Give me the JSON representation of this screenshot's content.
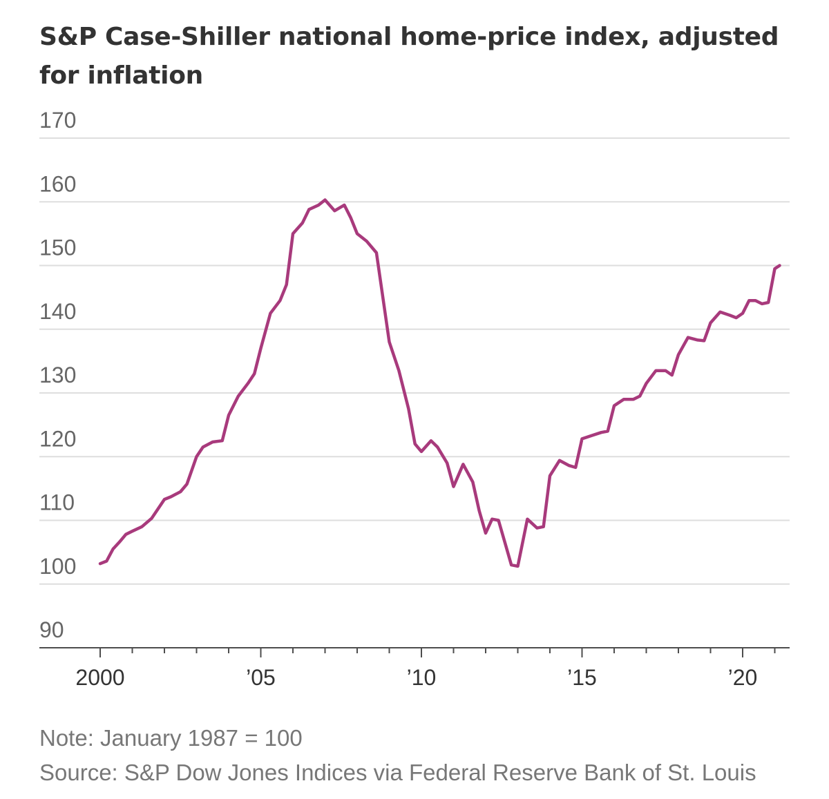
{
  "chart_data": {
    "type": "line",
    "title": "S&P Case-Shiller national home-price index, adjusted for inflation",
    "note": "Note: January 1987 = 100",
    "source": "Source: S&P Dow Jones Indices via Federal Reserve Bank of St. Louis",
    "xlabel": "",
    "ylabel": "",
    "ylim": [
      90,
      170
    ],
    "yticks": [
      {
        "value": 170,
        "label": "170"
      },
      {
        "value": 160,
        "label": "160"
      },
      {
        "value": 150,
        "label": "150"
      },
      {
        "value": 140,
        "label": "140"
      },
      {
        "value": 130,
        "label": "130"
      },
      {
        "value": 120,
        "label": "120"
      },
      {
        "value": 110,
        "label": "110"
      },
      {
        "value": 100,
        "label": "100"
      },
      {
        "value": 90,
        "label": "90"
      }
    ],
    "xlim": [
      2000,
      2021.2
    ],
    "xticks": [
      {
        "value": 2000,
        "label": "2000"
      },
      {
        "value": 2005,
        "label": "’05"
      },
      {
        "value": 2010,
        "label": "’10"
      },
      {
        "value": 2015,
        "label": "’15"
      },
      {
        "value": 2020,
        "label": "’20"
      }
    ],
    "minor_xticks": [
      2001,
      2002,
      2003,
      2004,
      2006,
      2007,
      2008,
      2009,
      2011,
      2012,
      2013,
      2014,
      2016,
      2017,
      2018,
      2019,
      2021
    ],
    "grid": true,
    "line_color": "#a83a7c",
    "series": [
      {
        "name": "",
        "x": [
          2000.0,
          2000.2,
          2000.4,
          2000.6,
          2000.8,
          2001.0,
          2001.3,
          2001.6,
          2002.0,
          2002.2,
          2002.5,
          2002.7,
          2003.0,
          2003.2,
          2003.5,
          2003.8,
          2004.0,
          2004.3,
          2004.6,
          2004.8,
          2005.0,
          2005.3,
          2005.6,
          2005.8,
          2006.0,
          2006.3,
          2006.5,
          2006.8,
          2007.0,
          2007.3,
          2007.6,
          2007.8,
          2008.0,
          2008.3,
          2008.6,
          2008.8,
          2009.0,
          2009.3,
          2009.6,
          2009.8,
          2010.0,
          2010.3,
          2010.5,
          2010.8,
          2011.0,
          2011.3,
          2011.6,
          2011.8,
          2012.0,
          2012.2,
          2012.4,
          2012.6,
          2012.8,
          2013.0,
          2013.3,
          2013.6,
          2013.8,
          2014.0,
          2014.3,
          2014.6,
          2014.8,
          2015.0,
          2015.3,
          2015.6,
          2015.8,
          2016.0,
          2016.3,
          2016.6,
          2016.8,
          2017.0,
          2017.3,
          2017.6,
          2017.8,
          2018.0,
          2018.3,
          2018.6,
          2018.8,
          2019.0,
          2019.3,
          2019.6,
          2019.8,
          2020.0,
          2020.2,
          2020.4,
          2020.6,
          2020.8,
          2021.0,
          2021.15
        ],
        "values": [
          103.2,
          103.6,
          105.5,
          106.6,
          107.8,
          108.3,
          109.0,
          110.3,
          113.3,
          113.7,
          114.5,
          115.7,
          120.0,
          121.5,
          122.3,
          122.5,
          126.5,
          129.5,
          131.5,
          133.0,
          137.0,
          142.5,
          144.5,
          147.0,
          155.0,
          156.7,
          158.8,
          159.5,
          160.3,
          158.6,
          159.5,
          157.5,
          155.0,
          153.8,
          152.0,
          145.0,
          138.0,
          133.5,
          127.5,
          122.0,
          120.8,
          122.5,
          121.5,
          119.0,
          115.3,
          118.8,
          116.0,
          111.5,
          108.0,
          110.2,
          110.0,
          106.5,
          103.0,
          102.8,
          110.2,
          108.8,
          109.0,
          117.0,
          119.4,
          118.6,
          118.3,
          122.8,
          123.3,
          123.8,
          124.0,
          128.0,
          129.0,
          129.0,
          129.5,
          131.5,
          133.5,
          133.5,
          132.8,
          136.0,
          138.7,
          138.3,
          138.2,
          141.0,
          142.7,
          142.2,
          141.8,
          142.5,
          144.5,
          144.5,
          144.0,
          144.2,
          149.5,
          150.0
        ]
      }
    ]
  }
}
